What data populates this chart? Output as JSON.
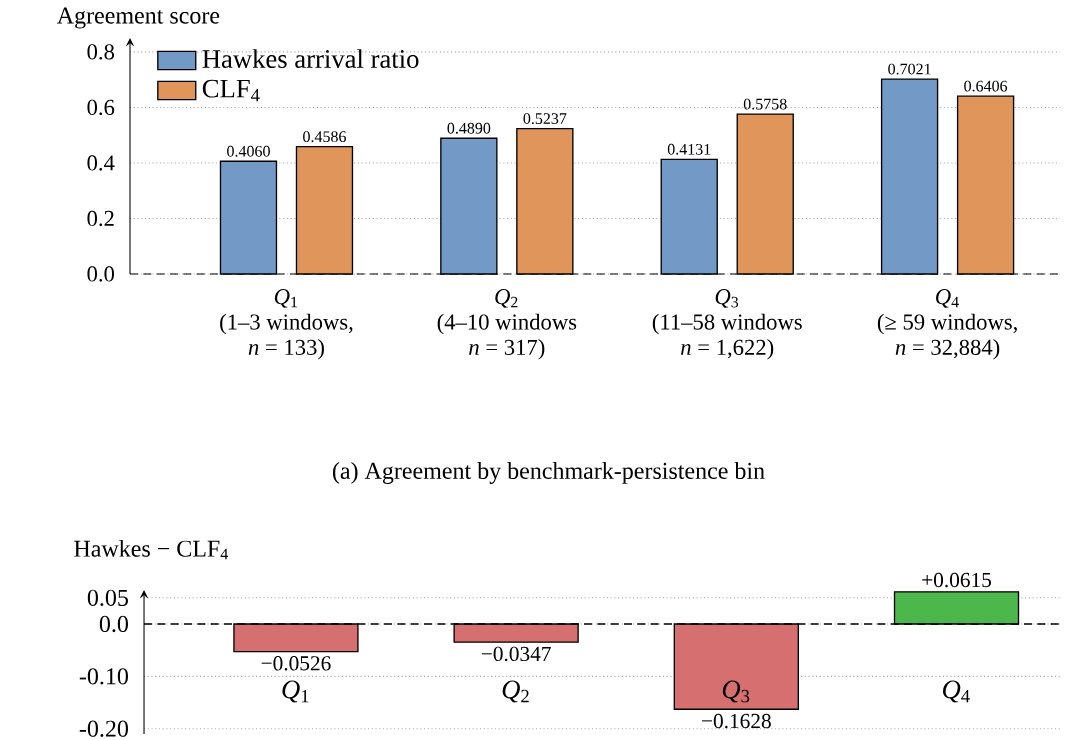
{
  "chart_data": [
    {
      "type": "bar",
      "title": "(a) Agreement by benchmark-persistence bin",
      "ylabel": "Agreement score",
      "categories": [
        "*Q*$_{1}$\n(1–3 windows,\n*n* = 133)",
        "*Q*$_{2}$\n(4–10 windows\n*n* = 317)",
        "*Q*$_{3}$\n(11–58 windows\n*n* = 1,622)",
        "*Q*$_{4}$\n(≥ 59 windows,\n*n* = 32,884)"
      ],
      "series": [
        {
          "name": "Hawkes arrival ratio",
          "color": "#7399c6",
          "values": [
            0.406,
            0.489,
            0.4131,
            0.7021
          ],
          "value_labels": [
            "0.4060",
            "0.4890",
            "0.4131",
            "0.7021"
          ]
        },
        {
          "name": "CLF$_{4}$",
          "color": "#e0955a",
          "values": [
            0.4586,
            0.5237,
            0.5758,
            0.6406
          ],
          "value_labels": [
            "0.4586",
            "0.5237",
            "0.5758",
            "0.6406"
          ]
        }
      ],
      "ylim": [
        0,
        0.85
      ],
      "yticks": [
        {
          "value": 0,
          "label": "0.0"
        },
        {
          "value": 0.2,
          "label": "0.2"
        },
        {
          "value": 0.4,
          "label": "0.4"
        },
        {
          "value": 0.6,
          "label": "0.6"
        },
        {
          "value": 0.8,
          "label": "0.8"
        }
      ],
      "grid": "y",
      "legend": "top left"
    },
    {
      "type": "bar",
      "ylabel": "Hawkes − CLF$_{4}$",
      "categories": [
        "*Q*$_{1}$",
        "*Q*$_{2}$",
        "*Q*$_{3}$",
        "*Q*$_{4}$"
      ],
      "values": [
        -0.0526,
        -0.0347,
        -0.1628,
        0.0615
      ],
      "colors": [
        "#d67070",
        "#d67070",
        "#d67070",
        "#4cb84c"
      ],
      "value_labels": [
        "−0.0526",
        "−0.0347",
        "−0.1628",
        "+0.0615"
      ],
      "ylim": [
        -0.21,
        0.065
      ],
      "yticks": [
        {
          "value": -0.2,
          "label": "-0.20"
        },
        {
          "value": -0.1,
          "label": "-0.10"
        },
        {
          "value": 0,
          "label": "0.0"
        },
        {
          "value": 0.05,
          "label": "0.05"
        }
      ],
      "ref_lines": [
        {
          "axis": "y",
          "value": 0,
          "line_style": "dashed"
        }
      ],
      "grid": "y"
    }
  ]
}
